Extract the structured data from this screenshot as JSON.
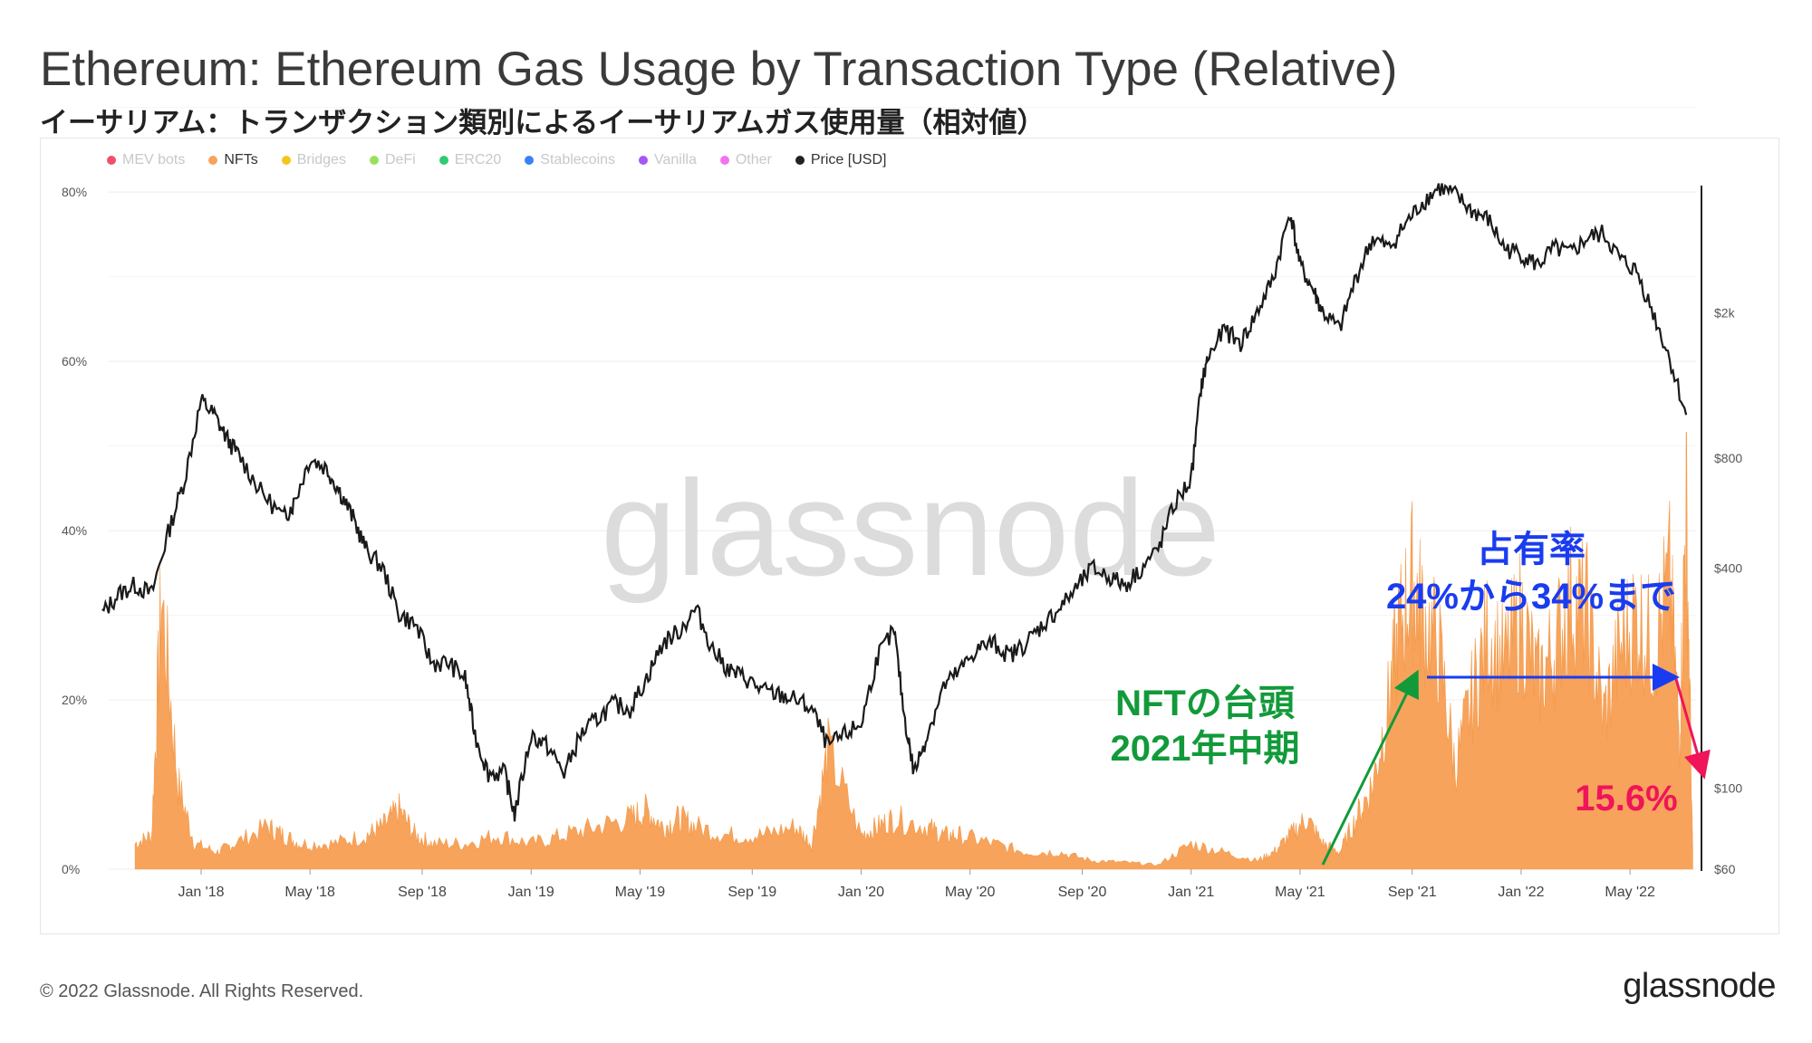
{
  "title": "Ethereum: Ethereum Gas Usage by Transaction Type (Relative)",
  "subtitle": "イーサリアム：トランザクション類別によるイーサリアムガス使用量（相対値）",
  "watermark": "glassnode",
  "footer": "© 2022 Glassnode. All Rights Reserved.",
  "brand": "glassnode",
  "legend": [
    {
      "label": "MEV bots",
      "color": "#f0506e",
      "active": false
    },
    {
      "label": "NFTs",
      "color": "#f7a35c",
      "active": true
    },
    {
      "label": "Bridges",
      "color": "#f5c518",
      "active": false
    },
    {
      "label": "DeFi",
      "color": "#9be05a",
      "active": false
    },
    {
      "label": "ERC20",
      "color": "#2ecc71",
      "active": false
    },
    {
      "label": "Stablecoins",
      "color": "#3b82f6",
      "active": false
    },
    {
      "label": "Vanilla",
      "color": "#a855f7",
      "active": false
    },
    {
      "label": "Other",
      "color": "#f472f0",
      "active": false
    },
    {
      "label": "Price [USD]",
      "color": "#222222",
      "active": true
    }
  ],
  "annotations": {
    "nft_rise": "NFTの台頭\n2021年中期",
    "share": "占有率\n24%から34%まで",
    "latest": "15.6%"
  },
  "colors": {
    "nft": "#f7a35c",
    "price": "#1a1a1a",
    "green": "#129a3a",
    "blue": "#1a3cf0",
    "red": "#f0145a"
  },
  "chart_data": {
    "type": "area",
    "x_axis": {
      "ticks": [
        "Jan '18",
        "May '18",
        "Sep '18",
        "Jan '19",
        "May '19",
        "Sep '19",
        "Jan '20",
        "May '20",
        "Sep '20",
        "Jan '21",
        "May '21",
        "Sep '21",
        "Jan '22",
        "May '22"
      ]
    },
    "y_left": {
      "ticks": [
        "0%",
        "20%",
        "40%",
        "60%",
        "80%"
      ],
      "range": [
        0,
        100
      ],
      "unit": "%"
    },
    "y_right": {
      "ticks": [
        "$60",
        "$100",
        "$400",
        "$800",
        "$2k"
      ],
      "scale": "log",
      "range": [
        60,
        5000
      ]
    },
    "grid": true,
    "series": [
      {
        "name": "NFTs",
        "axis": "left",
        "color": "#f7a35c",
        "t": [
          2017.8,
          2017.85,
          2017.88,
          2017.93,
          2017.98,
          2018.05,
          2018.1,
          2018.2,
          2018.25,
          2018.3,
          2018.4,
          2018.5,
          2018.55,
          2018.6,
          2018.65,
          2018.7,
          2018.8,
          2018.9,
          2019.0,
          2019.1,
          2019.2,
          2019.3,
          2019.35,
          2019.4,
          2019.45,
          2019.5,
          2019.6,
          2019.7,
          2019.8,
          2019.85,
          2019.9,
          2020.0,
          2020.05,
          2020.1,
          2020.2,
          2020.25,
          2020.3,
          2020.4,
          2020.5,
          2020.6,
          2020.7,
          2020.8,
          2020.9,
          2021.0,
          2021.1,
          2021.2,
          2021.25,
          2021.3,
          2021.35,
          2021.4,
          2021.45,
          2021.5,
          2021.55,
          2021.6,
          2021.63,
          2021.67,
          2021.7,
          2021.75,
          2021.8,
          2021.85,
          2021.9,
          2021.95,
          2022.0,
          2022.05,
          2022.1,
          2022.15,
          2022.2,
          2022.25,
          2022.3,
          2022.35,
          2022.4,
          2022.45,
          2022.48,
          2022.5,
          2022.52
        ],
        "v": [
          3,
          4,
          32,
          10,
          3,
          2,
          3,
          5,
          4,
          3,
          3,
          4,
          5,
          7,
          4,
          3,
          3,
          4,
          3,
          4,
          5,
          6,
          7,
          5,
          6,
          5,
          4,
          4,
          5,
          3,
          14,
          4,
          5,
          6,
          5,
          4,
          4,
          3,
          2,
          2,
          1,
          0.8,
          0.5,
          3,
          2,
          1,
          2,
          4,
          6,
          3,
          2,
          6,
          10,
          20,
          28,
          34,
          30,
          26,
          12,
          20,
          28,
          24,
          30,
          22,
          26,
          32,
          30,
          18,
          26,
          30,
          26,
          34,
          15.6,
          44,
          2
        ]
      },
      {
        "name": "Price [USD]",
        "axis": "right",
        "color": "#1a1a1a",
        "t": [
          2017.7,
          2017.75,
          2017.8,
          2017.85,
          2017.9,
          2017.95,
          2018.0,
          2018.04,
          2018.08,
          2018.12,
          2018.18,
          2018.25,
          2018.28,
          2018.33,
          2018.38,
          2018.42,
          2018.46,
          2018.5,
          2018.55,
          2018.6,
          2018.65,
          2018.7,
          2018.75,
          2018.8,
          2018.83,
          2018.87,
          2018.92,
          2018.95,
          2019.0,
          2019.05,
          2019.1,
          2019.15,
          2019.2,
          2019.25,
          2019.3,
          2019.35,
          2019.4,
          2019.45,
          2019.5,
          2019.55,
          2019.6,
          2019.65,
          2019.7,
          2019.75,
          2019.8,
          2019.85,
          2019.9,
          2019.95,
          2020.0,
          2020.05,
          2020.1,
          2020.13,
          2020.16,
          2020.2,
          2020.25,
          2020.3,
          2020.35,
          2020.4,
          2020.45,
          2020.5,
          2020.55,
          2020.6,
          2020.65,
          2020.7,
          2020.75,
          2020.8,
          2020.85,
          2020.9,
          2020.95,
          2021.0,
          2021.03,
          2021.05,
          2021.1,
          2021.15,
          2021.2,
          2021.25,
          2021.3,
          2021.33,
          2021.37,
          2021.4,
          2021.45,
          2021.5,
          2021.55,
          2021.6,
          2021.65,
          2021.7,
          2021.75,
          2021.8,
          2021.85,
          2021.9,
          2021.95,
          2022.0,
          2022.05,
          2022.1,
          2022.15,
          2022.2,
          2022.25,
          2022.3,
          2022.35,
          2022.4,
          2022.45,
          2022.5
        ],
        "v": [
          300,
          340,
          360,
          340,
          500,
          700,
          1150,
          1050,
          900,
          800,
          650,
          550,
          600,
          800,
          750,
          650,
          550,
          450,
          400,
          300,
          280,
          220,
          220,
          200,
          140,
          110,
          110,
          85,
          140,
          130,
          110,
          140,
          155,
          170,
          165,
          200,
          250,
          270,
          310,
          240,
          210,
          200,
          185,
          180,
          175,
          165,
          130,
          140,
          150,
          230,
          270,
          160,
          110,
          140,
          190,
          210,
          240,
          250,
          230,
          250,
          280,
          310,
          350,
          400,
          380,
          360,
          400,
          450,
          600,
          700,
          1250,
          1500,
          1800,
          1650,
          2000,
          2500,
          3800,
          2700,
          2300,
          2000,
          1800,
          2500,
          3200,
          3000,
          3500,
          4000,
          4400,
          4200,
          3800,
          3600,
          3000,
          2900,
          2700,
          3000,
          2900,
          3200,
          3300,
          2800,
          2600,
          2000,
          1500,
          1050
        ]
      }
    ]
  }
}
